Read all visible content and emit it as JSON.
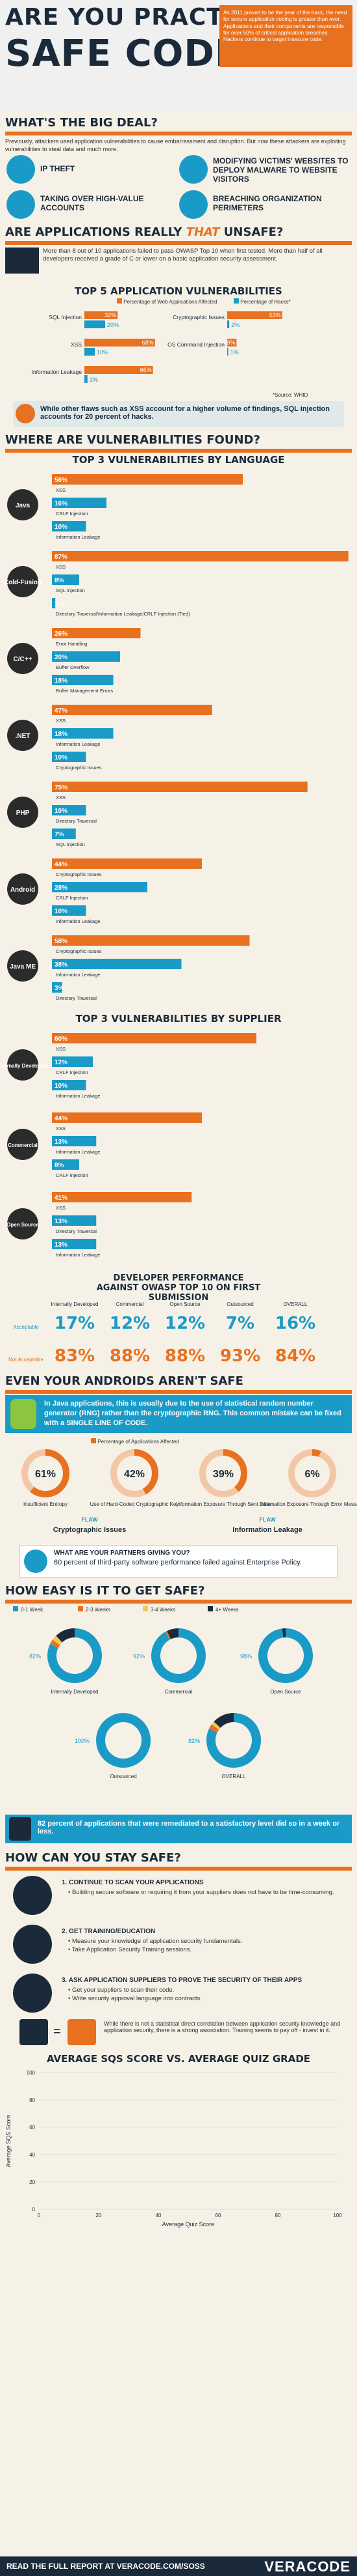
{
  "header": {
    "title_line1": "ARE YOU PRACTICING",
    "title_line2": "SAFE CODING?",
    "intro": "As 2011 proved to be the year of the hack, the need for secure application coding is greater than ever. Applications and their components are responsible for over 50% of critical application breaches. Hackers continue to target insecure code."
  },
  "big_deal": {
    "heading": "WHAT'S THE BIG DEAL?",
    "intro": "Previously, attackers used application vulnerabilities to cause embarrassment and disruption. But now these attackers are exploiting vulnerabilities to steal data and much more.",
    "items": [
      "IP THEFT",
      "MODIFYING VICTIMS' WEBSITES TO DEPLOY MALWARE TO WEBSITE VISITORS",
      "TAKING OVER HIGH-VALUE ACCOUNTS",
      "BREACHING ORGANIZATION PERIMETERS"
    ]
  },
  "unsafe": {
    "heading_a": "ARE APPLICATIONS REALLY ",
    "heading_b": "THAT",
    "heading_c": " UNSAFE?",
    "text": "More than 8 out of 10 applications failed to pass OWASP Top 10 when first tested. More than half of all developers received a grade of C or lower on a basic application security assessment."
  },
  "chart_data": [
    {
      "type": "bar",
      "title": "TOP 5 APPLICATION VULNERABILITIES",
      "series": [
        {
          "name": "Percentage of Web Applications Affected",
          "color": "#e8711f"
        },
        {
          "name": "Percentage of Hacks*",
          "color": "#1a9bc7"
        }
      ],
      "categories": [
        "SQL Injection",
        "XSS",
        "Information Leakage",
        "Cryptographic Issues",
        "OS Command Injection"
      ],
      "values": [
        [
          32,
          20
        ],
        [
          68,
          10
        ],
        [
          66,
          3
        ],
        [
          53,
          2
        ],
        [
          9,
          1
        ]
      ],
      "footnote": "*Source: WHID",
      "note": "While other flaws such as XSS account for a higher volume of findings, SQL injection accounts for 20 percent of hacks."
    },
    {
      "type": "bar",
      "title": "TOP 3 VULNERABILITIES BY LANGUAGE",
      "groups": [
        {
          "lang": "Java",
          "items": [
            [
              "56%",
              "XSS"
            ],
            [
              "16%",
              "CRLF Injection"
            ],
            [
              "10%",
              "Information Leakage"
            ]
          ],
          "v": [
            56,
            16,
            10
          ]
        },
        {
          "lang": "Cold-Fusion",
          "items": [
            [
              "87%",
              "XSS"
            ],
            [
              "8%",
              "SQL Injection"
            ],
            [
              "1%",
              "Directory Traversal/Information Leakage/CRLF Injection (Tied)"
            ]
          ],
          "v": [
            87,
            8,
            1
          ]
        },
        {
          "lang": "C/C++",
          "items": [
            [
              "26%",
              "Error Handling"
            ],
            [
              "20%",
              "Buffer Overflow"
            ],
            [
              "18%",
              "Buffer Management Errors"
            ]
          ],
          "v": [
            26,
            20,
            18
          ]
        },
        {
          "lang": ".NET",
          "items": [
            [
              "47%",
              "XSS"
            ],
            [
              "18%",
              "Information Leakage"
            ],
            [
              "10%",
              "Cryptographic Issues"
            ]
          ],
          "v": [
            47,
            18,
            10
          ]
        },
        {
          "lang": "PHP",
          "items": [
            [
              "75%",
              "XSS"
            ],
            [
              "10%",
              "Directory Traversal"
            ],
            [
              "7%",
              "SQL Injection"
            ]
          ],
          "v": [
            75,
            10,
            7
          ]
        },
        {
          "lang": "Android",
          "items": [
            [
              "44%",
              "Cryptographic Issues"
            ],
            [
              "28%",
              "CRLF Injection"
            ],
            [
              "10%",
              "Information Leakage"
            ]
          ],
          "v": [
            44,
            28,
            10
          ]
        },
        {
          "lang": "Java ME",
          "items": [
            [
              "58%",
              "Cryptographic Issues"
            ],
            [
              "38%",
              "Information Leakage"
            ],
            [
              "3%",
              "Directory Traversal"
            ]
          ],
          "v": [
            58,
            38,
            3
          ]
        }
      ]
    },
    {
      "type": "bar",
      "title": "TOP 3 VULNERABILITIES BY SUPPLIER",
      "groups": [
        {
          "supplier": "Internally Developed",
          "items": [
            [
              "60%",
              "XSS"
            ],
            [
              "12%",
              "CRLF Injection"
            ],
            [
              "10%",
              "Information Leakage"
            ]
          ],
          "v": [
            60,
            12,
            10
          ]
        },
        {
          "supplier": "Commercial",
          "items": [
            [
              "44%",
              "XSS"
            ],
            [
              "13%",
              "Information Leakage"
            ],
            [
              "8%",
              "CRLF Injection"
            ]
          ],
          "v": [
            44,
            13,
            8
          ]
        },
        {
          "supplier": "Open Source",
          "items": [
            [
              "41%",
              "XSS"
            ],
            [
              "13%",
              "Directory Traversal"
            ],
            [
              "13%",
              "Information Leakage"
            ]
          ],
          "v": [
            41,
            13,
            13
          ]
        }
      ]
    },
    {
      "type": "table",
      "title": "DEVELOPER PERFORMANCE AGAINST OWASP TOP 10 ON FIRST SUBMISSION",
      "columns": [
        "Internally Developed",
        "Commercial",
        "Open Source",
        "Outsourced",
        "OVERALL"
      ],
      "rows": [
        {
          "label": "Acceptable",
          "values": [
            "17%",
            "12%",
            "12%",
            "7%",
            "16%"
          ]
        },
        {
          "label": "Not Acceptable",
          "values": [
            "83%",
            "88%",
            "88%",
            "93%",
            "84%"
          ]
        }
      ]
    },
    {
      "type": "pie",
      "title": "Percentage of Applications Affected",
      "slices": [
        [
          "61%",
          "Insufficient Entropy"
        ],
        [
          "42%",
          "Use of Hard-Coded Cryptographic Key"
        ],
        [
          "39%",
          "Information Exposure Through Sent Data"
        ],
        [
          "6%",
          "Information Exposure Through Error Message"
        ]
      ],
      "values": [
        61,
        42,
        39,
        6
      ],
      "groups": [
        "Cryptographic Issues",
        "Information Leakage"
      ]
    },
    {
      "type": "pie",
      "title": "HOW EASY IS IT TO GET SAFE?",
      "legend": [
        "0-1 Week",
        "2-3 Weeks",
        "3-4 Weeks",
        "4+ Weeks"
      ],
      "charts": [
        {
          "label": "Internally Developed",
          "values": [
            82,
            3,
            3,
            12
          ]
        },
        {
          "label": "Commercial",
          "values": [
            92,
            1,
            0,
            7
          ]
        },
        {
          "label": "Open Source",
          "values": [
            98,
            0,
            0,
            2
          ]
        },
        {
          "label": "Outsourced",
          "values": [
            100,
            0,
            0,
            0
          ]
        },
        {
          "label": "OVERALL",
          "values": [
            82,
            3,
            2,
            13
          ]
        }
      ]
    },
    {
      "type": "scatter",
      "title": "AVERAGE SQS SCORE VS. AVERAGE QUIZ GRADE",
      "xlabel": "Average Quiz Score",
      "ylabel": "Average SQS Score",
      "xlim": [
        0,
        100
      ],
      "ylim": [
        0,
        100
      ]
    }
  ],
  "androids": {
    "heading": "EVEN YOUR ANDROIDS AREN'T SAFE",
    "text": "In Java applications, this is usually due to the use of statistical random number generator (RNG) rather than the cryptographic RNG. This common mistake can be fixed with a SINGLE LINE OF CODE.",
    "flaw": "FLAW"
  },
  "partners": {
    "q": "WHAT ARE YOUR PARTNERS GIVING YOU?",
    "a": "60 percent of third-party software performance failed against Enterprise Policy."
  },
  "easy": {
    "heading": "HOW EASY IS IT TO GET SAFE?",
    "note": "82 percent of applications that were remediated to a satisfactory level did so in a week or less."
  },
  "stay": {
    "heading": "HOW CAN YOU STAY SAFE?",
    "steps": [
      {
        "t": "1. CONTINUE TO SCAN YOUR APPLICATIONS",
        "b": [
          "Building secure software or requiring it from your suppliers does not have to be time-consuming."
        ]
      },
      {
        "t": "2. GET TRAINING/EDUCATION",
        "b": [
          "Measure your knowledge of application security fundamentals.",
          "Take Application Security Training sessions."
        ]
      },
      {
        "t": "3. ASK APPLICATION SUPPLIERS TO PROVE THE SECURITY OF THEIR APPS",
        "b": [
          "Get your suppliers to scan their code.",
          "Write security approval language into contracts."
        ]
      }
    ],
    "quiz_note": "While there is not a statistical direct correlation between application security knowledge and application security, there is a strong association. Training seems to pay off - invest in it."
  },
  "footer": {
    "left": "READ THE FULL REPORT AT VERACODE.COM/SOSS",
    "brand": "VERACODE"
  },
  "colors": {
    "orange": "#e8711f",
    "teal": "#1a9bc7",
    "navy": "#1b2a3a"
  }
}
